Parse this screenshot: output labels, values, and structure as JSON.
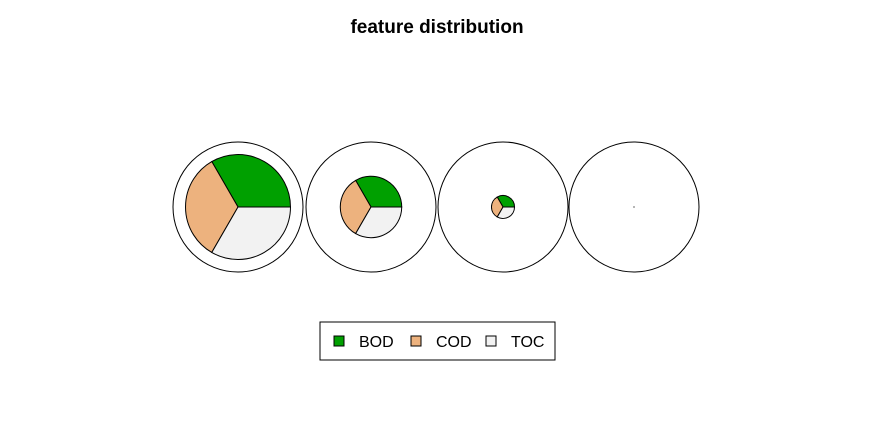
{
  "chart_data": {
    "type": "pie",
    "title": "feature distribution",
    "categories": [
      "BOD",
      "COD",
      "TOC"
    ],
    "colors": {
      "BOD": "#00A000",
      "COD": "#EDB27E",
      "TOC": "#F2F2F2"
    },
    "slice_fractions": [
      0.3333,
      0.3333,
      0.3334
    ],
    "pies": [
      {
        "relative_size": 0.82
      },
      {
        "relative_size": 0.48
      },
      {
        "relative_size": 0.18
      },
      {
        "relative_size": 0.0
      }
    ],
    "legend": {
      "position": "bottom-center",
      "entries": [
        "BOD",
        "COD",
        "TOC"
      ]
    }
  }
}
